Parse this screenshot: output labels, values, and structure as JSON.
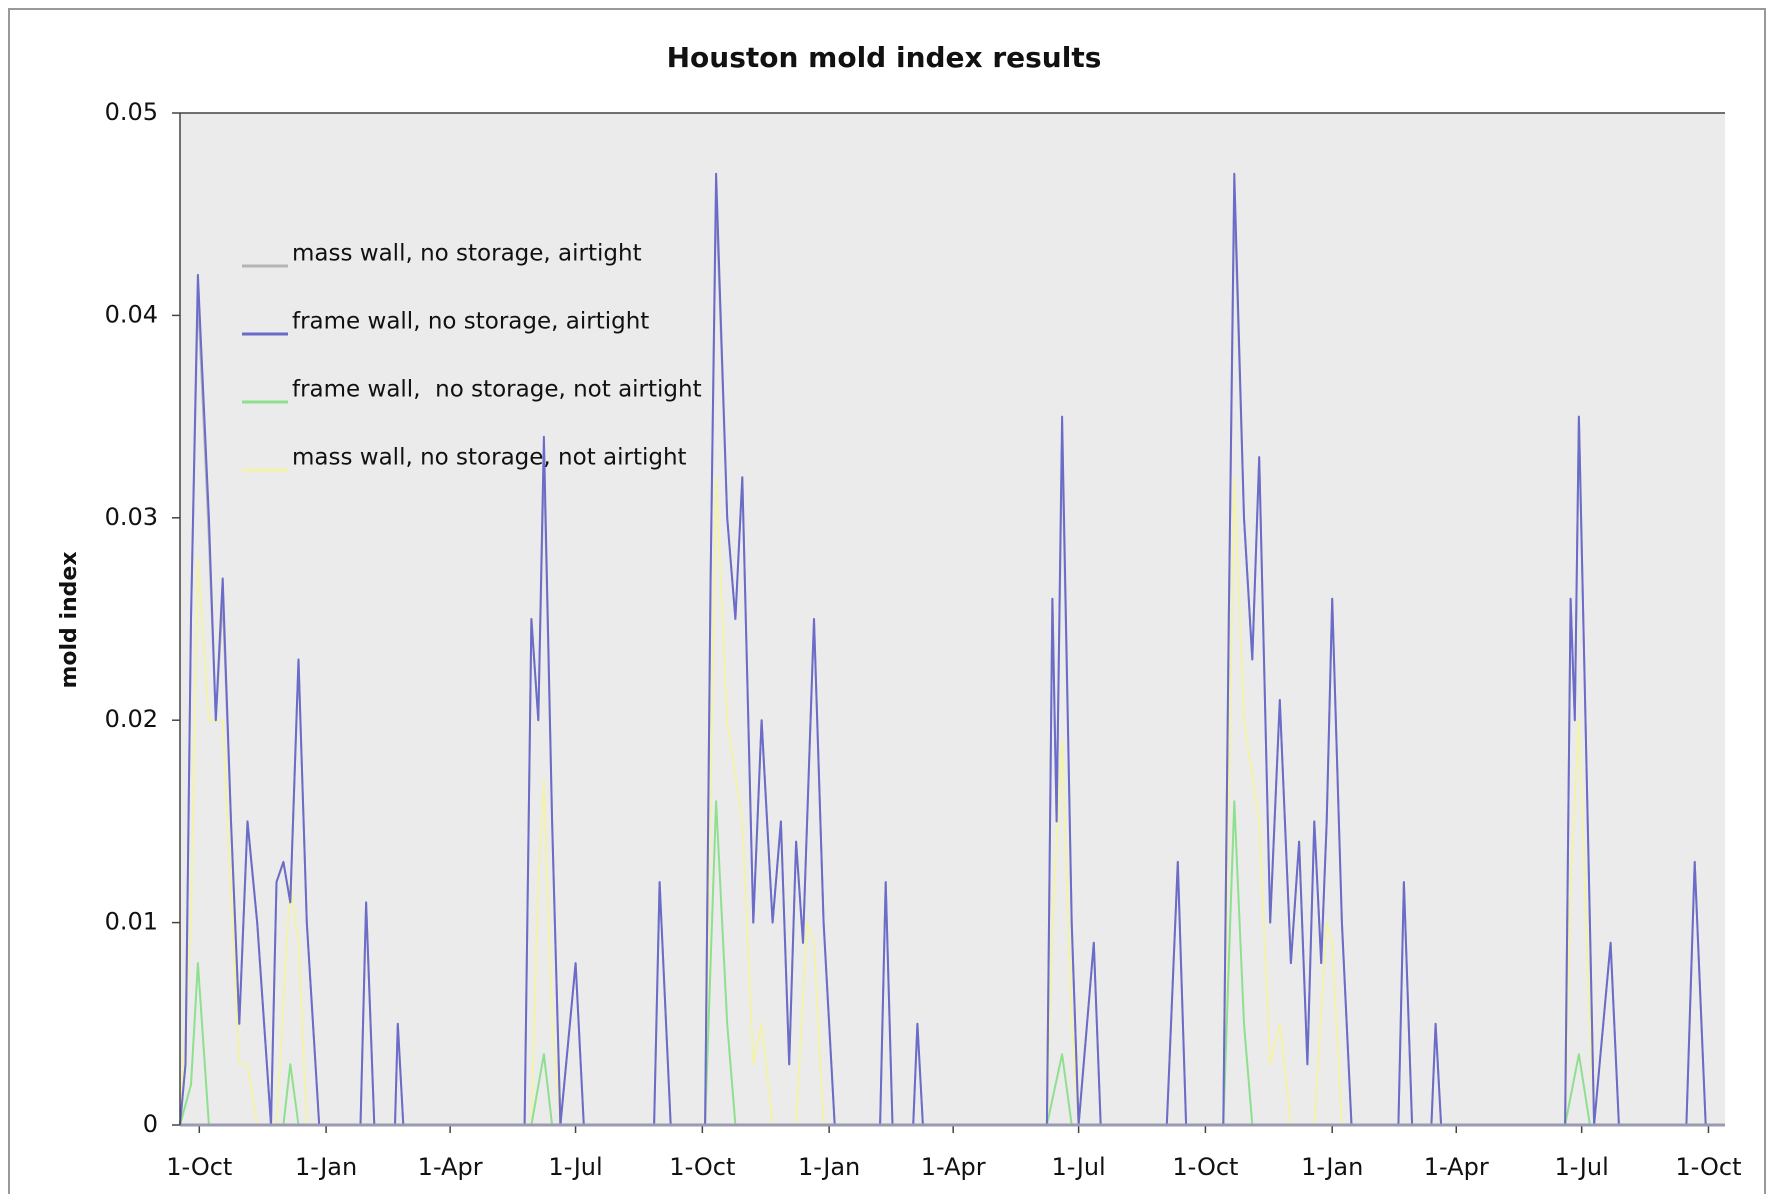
{
  "chart_data": {
    "type": "line",
    "title": "Houston mold index results",
    "ylabel": "mold index",
    "xlim": [
      -14,
      1107
    ],
    "ylim": [
      0,
      0.05
    ],
    "yticks": [
      0,
      0.01,
      0.02,
      0.03,
      0.04,
      0.05
    ],
    "xticks": [
      {
        "value": 0,
        "label": "1-Oct"
      },
      {
        "value": 92,
        "label": "1-Jan"
      },
      {
        "value": 182,
        "label": "1-Apr"
      },
      {
        "value": 273,
        "label": "1-Jul"
      },
      {
        "value": 365,
        "label": "1-Oct"
      },
      {
        "value": 457,
        "label": "1-Jan"
      },
      {
        "value": 547,
        "label": "1-Apr"
      },
      {
        "value": 638,
        "label": "1-Jul"
      },
      {
        "value": 730,
        "label": "1-Oct"
      },
      {
        "value": 822,
        "label": "1-Jan"
      },
      {
        "value": 912,
        "label": "1-Apr"
      },
      {
        "value": 1003,
        "label": "1-Jul"
      },
      {
        "value": 1095,
        "label": "1-Oct"
      }
    ],
    "grid": false,
    "legend": "upper left",
    "series": [
      {
        "name": "mass wall, no storage, airtight",
        "color": "#b4b4b4",
        "x": [
          -14,
          -10,
          -6,
          -1,
          7,
          12,
          17,
          23,
          29,
          35,
          42,
          48,
          52,
          56,
          61,
          66,
          72,
          78,
          87,
          117,
          121,
          127,
          142,
          144,
          148,
          236,
          241,
          246,
          250,
          256,
          262,
          273,
          279,
          330,
          334,
          342,
          367,
          371,
          375,
          383,
          389,
          394,
          402,
          408,
          416,
          422,
          428,
          433,
          438,
          441,
          446,
          453,
          461,
          494,
          498,
          503,
          518,
          521,
          525,
          615,
          619,
          622,
          626,
          633,
          638,
          649,
          654,
          702,
          710,
          716,
          743,
          747,
          751,
          758,
          764,
          769,
          777,
          784,
          792,
          798,
          804,
          809,
          814,
          818,
          822,
          829,
          836,
          870,
          874,
          880,
          894,
          897,
          901,
          991,
          995,
          998,
          1001,
          1009,
          1012,
          1024,
          1030,
          1079,
          1085,
          1093,
          1107
        ],
        "values": [
          0,
          0.003,
          0.025,
          0.041,
          0.029,
          0.02,
          0.026,
          0.015,
          0.005,
          0.015,
          0.01,
          0.004,
          0,
          0.012,
          0.013,
          0.011,
          0.023,
          0.01,
          0,
          0,
          0.011,
          0,
          0,
          0.005,
          0,
          0,
          0.025,
          0.02,
          0.033,
          0.015,
          0,
          0.008,
          0,
          0,
          0.012,
          0,
          0,
          0.027,
          0.046,
          0.03,
          0.025,
          0.032,
          0.01,
          0.02,
          0.01,
          0.015,
          0.003,
          0.014,
          0.009,
          0.015,
          0.025,
          0.01,
          0,
          0,
          0.012,
          0,
          0,
          0.005,
          0,
          0,
          0.026,
          0.015,
          0.034,
          0.01,
          0,
          0.009,
          0,
          0,
          0.013,
          0,
          0,
          0.025,
          0.046,
          0.03,
          0.023,
          0.033,
          0.01,
          0.021,
          0.008,
          0.014,
          0.003,
          0.015,
          0.008,
          0.015,
          0.026,
          0.01,
          0,
          0,
          0.012,
          0,
          0,
          0.005,
          0,
          0,
          0.026,
          0.02,
          0.035,
          0.01,
          0,
          0.009,
          0,
          0,
          0.013,
          0,
          0
        ]
      },
      {
        "name": "frame wall, no storage, airtight",
        "color": "#6b6bc9",
        "x": [
          -14,
          -10,
          -6,
          -1,
          7,
          12,
          17,
          23,
          29,
          35,
          42,
          48,
          52,
          56,
          61,
          66,
          72,
          78,
          87,
          117,
          121,
          127,
          142,
          144,
          148,
          236,
          241,
          246,
          250,
          256,
          262,
          273,
          279,
          330,
          334,
          342,
          367,
          371,
          375,
          383,
          389,
          394,
          402,
          408,
          416,
          422,
          428,
          433,
          438,
          441,
          446,
          453,
          461,
          494,
          498,
          503,
          518,
          521,
          525,
          615,
          619,
          622,
          626,
          633,
          638,
          649,
          654,
          702,
          710,
          716,
          743,
          747,
          751,
          758,
          764,
          769,
          777,
          784,
          792,
          798,
          804,
          809,
          814,
          818,
          822,
          829,
          836,
          870,
          874,
          880,
          894,
          897,
          901,
          991,
          995,
          998,
          1001,
          1009,
          1012,
          1024,
          1030,
          1079,
          1085,
          1093,
          1107
        ],
        "values": [
          0,
          0.003,
          0.025,
          0.042,
          0.03,
          0.02,
          0.027,
          0.015,
          0.005,
          0.015,
          0.01,
          0.004,
          0,
          0.012,
          0.013,
          0.011,
          0.023,
          0.01,
          0,
          0,
          0.011,
          0,
          0,
          0.005,
          0,
          0,
          0.025,
          0.02,
          0.034,
          0.015,
          0,
          0.008,
          0,
          0,
          0.012,
          0,
          0,
          0.027,
          0.047,
          0.03,
          0.025,
          0.032,
          0.01,
          0.02,
          0.01,
          0.015,
          0.003,
          0.014,
          0.009,
          0.015,
          0.025,
          0.01,
          0,
          0,
          0.012,
          0,
          0,
          0.005,
          0,
          0,
          0.026,
          0.015,
          0.035,
          0.01,
          0,
          0.009,
          0,
          0,
          0.013,
          0,
          0,
          0.025,
          0.047,
          0.03,
          0.023,
          0.033,
          0.01,
          0.021,
          0.008,
          0.014,
          0.003,
          0.015,
          0.008,
          0.015,
          0.026,
          0.01,
          0,
          0,
          0.012,
          0,
          0,
          0.005,
          0,
          0,
          0.026,
          0.02,
          0.035,
          0.01,
          0,
          0.009,
          0,
          0,
          0.013,
          0,
          0
        ]
      },
      {
        "name": "frame wall,  no storage, not airtight",
        "color": "#8ee08e",
        "x": [
          -14,
          -6,
          -1,
          7,
          61,
          66,
          72,
          241,
          250,
          256,
          367,
          375,
          383,
          389,
          615,
          626,
          633,
          743,
          751,
          758,
          764,
          991,
          1001,
          1009,
          1107
        ],
        "values": [
          0,
          0.002,
          0.008,
          0,
          0,
          0.003,
          0,
          0,
          0.0035,
          0,
          0,
          0.016,
          0.005,
          0,
          0,
          0.0035,
          0,
          0,
          0.016,
          0.005,
          0,
          0,
          0.0035,
          0,
          0
        ]
      },
      {
        "name": "mass wall, no storage, not airtight",
        "color": "#f2f2aa",
        "x": [
          -14,
          -6,
          -1,
          7,
          17,
          29,
          35,
          42,
          56,
          66,
          72,
          78,
          241,
          246,
          250,
          256,
          262,
          367,
          375,
          383,
          394,
          402,
          408,
          416,
          433,
          441,
          446,
          453,
          615,
          619,
          626,
          633,
          638,
          743,
          751,
          758,
          769,
          777,
          784,
          792,
          809,
          818,
          822,
          829,
          991,
          995,
          1001,
          1009,
          1012,
          1107
        ],
        "values": [
          0,
          0.01,
          0.028,
          0.02,
          0.02,
          0.003,
          0.003,
          0,
          0,
          0.012,
          0.009,
          0,
          0,
          0.012,
          0.017,
          0.005,
          0,
          0,
          0.032,
          0.02,
          0.015,
          0.003,
          0.005,
          0,
          0,
          0.01,
          0.009,
          0,
          0,
          0.01,
          0.019,
          0.005,
          0,
          0,
          0.032,
          0.02,
          0.015,
          0.003,
          0.005,
          0,
          0,
          0.01,
          0.009,
          0,
          0,
          0.012,
          0.02,
          0.005,
          0,
          0
        ]
      }
    ]
  }
}
